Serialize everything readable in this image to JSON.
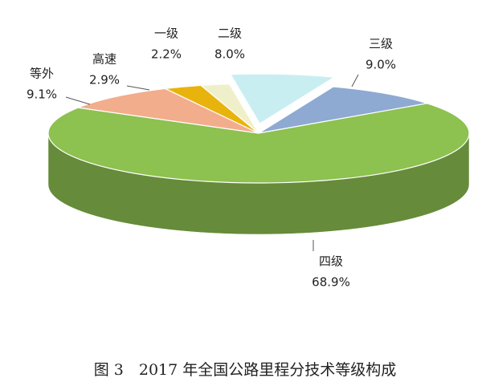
{
  "chart_data": {
    "type": "pie",
    "title": "图 3　2017 年全国公路里程分技术等级构成",
    "categories": [
      "二级",
      "三级",
      "四级",
      "等外",
      "高速",
      "一级"
    ],
    "values": [
      8.0,
      9.0,
      68.9,
      9.1,
      2.9,
      2.2
    ],
    "value_labels": [
      "8.0%",
      "9.0%",
      "68.9%",
      "9.1%",
      "2.9%",
      "2.2%"
    ],
    "colors": [
      "#c9eef2",
      "#8eaad2",
      "#8dc150",
      "#f2ad8c",
      "#e8b30c",
      "#eff0c9"
    ]
  }
}
